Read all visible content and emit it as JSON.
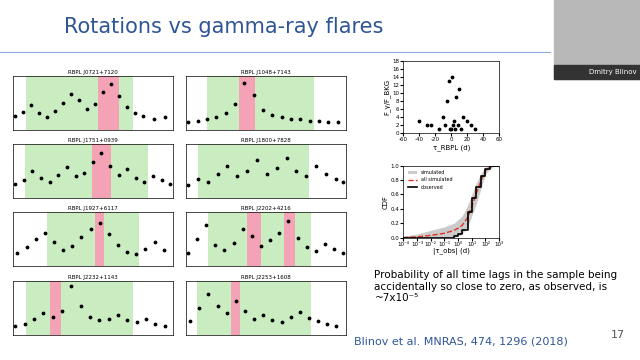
{
  "slide": {
    "title": "Rotations vs gamma-ray flares",
    "page": 17,
    "speaker": "Dmitry Blinov",
    "note": "Probability of all time lags in the sample being accidentally so close to zero, as observed, is ~7x10⁻⁵",
    "reference": "Blinov et al. MNRAS, 474, 1296 (2018)"
  },
  "chart_data": [
    {
      "type": "scatter",
      "title": "RBPL J0721+7120",
      "tick_labels": false,
      "xlim": [
        6550,
        7150
      ],
      "ylim": [
        0,
        4
      ],
      "observing_seasons": [
        [
          6600,
          7000
        ]
      ],
      "rotation_intervals": [
        [
          6870,
          6950
        ]
      ],
      "x": [
        6560,
        6590,
        6620,
        6650,
        6680,
        6710,
        6740,
        6770,
        6800,
        6830,
        6860,
        6890,
        6920,
        6950,
        6980,
        7010,
        7040,
        7080,
        7120
      ],
      "series": [
        {
          "color": "#000000",
          "marker": "o",
          "values": [
            1.0,
            1.3,
            1.8,
            1.2,
            0.9,
            1.4,
            2.0,
            2.6,
            2.2,
            1.5,
            1.9,
            2.8,
            3.4,
            2.5,
            1.7,
            1.2,
            1.0,
            0.8,
            0.9
          ]
        }
      ]
    },
    {
      "type": "scatter",
      "title": "RBPL J1048+7143",
      "tick_labels": false,
      "xlim": [
        6500,
        7100
      ],
      "ylim": [
        0,
        3
      ],
      "observing_seasons": [
        [
          6580,
          6980
        ]
      ],
      "rotation_intervals": [
        [
          6700,
          6760
        ]
      ],
      "x": [
        6510,
        6545,
        6580,
        6615,
        6650,
        6685,
        6720,
        6755,
        6790,
        6825,
        6860,
        6895,
        6930,
        6965,
        7000,
        7035,
        7070
      ],
      "series": [
        {
          "color": "#000000",
          "marker": "o",
          "values": [
            0.4,
            0.5,
            0.6,
            0.7,
            0.9,
            1.4,
            2.6,
            1.9,
            1.1,
            0.8,
            0.7,
            0.6,
            0.6,
            0.5,
            0.5,
            0.4,
            0.4
          ]
        }
      ]
    },
    {
      "type": "scatter",
      "title": "RBPL J1751+0939",
      "tick_labels": false,
      "xlim": [
        6400,
        7050
      ],
      "ylim": [
        0,
        3
      ],
      "observing_seasons": [
        [
          6450,
          6950
        ]
      ],
      "rotation_intervals": [
        [
          6720,
          6800
        ]
      ],
      "x": [
        6410,
        6445,
        6480,
        6515,
        6550,
        6585,
        6620,
        6655,
        6690,
        6725,
        6760,
        6795,
        6830,
        6865,
        6900,
        6935,
        6970,
        7005,
        7040
      ],
      "series": [
        {
          "color": "#000000",
          "marker": "o",
          "values": [
            0.8,
            1.0,
            1.5,
            1.1,
            0.9,
            1.3,
            1.7,
            1.2,
            1.4,
            2.0,
            2.5,
            1.8,
            1.3,
            1.6,
            1.1,
            0.9,
            1.2,
            1.0,
            0.8
          ]
        }
      ]
    },
    {
      "type": "scatter",
      "title": "RBPL J1800+7828",
      "tick_labels": false,
      "xlim": [
        6450,
        7100
      ],
      "ylim": [
        0,
        2
      ],
      "observing_seasons": [
        [
          6500,
          6950
        ]
      ],
      "rotation_intervals": [],
      "x": [
        6460,
        6500,
        6540,
        6580,
        6620,
        6660,
        6700,
        6740,
        6780,
        6820,
        6860,
        6900,
        6940,
        6980,
        7020,
        7060,
        7090
      ],
      "series": [
        {
          "color": "#000000",
          "marker": "o",
          "values": [
            0.5,
            0.7,
            0.6,
            0.9,
            1.2,
            0.8,
            1.0,
            1.4,
            0.9,
            1.1,
            1.5,
            1.0,
            0.8,
            1.2,
            0.9,
            0.7,
            0.6
          ]
        }
      ]
    },
    {
      "type": "scatter",
      "title": "RBPL J1927+6117",
      "tick_labels": false,
      "xlim": [
        6400,
        7100
      ],
      "ylim": [
        0,
        4
      ],
      "observing_seasons": [
        [
          6550,
          6950
        ]
      ],
      "rotation_intervals": [
        [
          6760,
          6800
        ]
      ],
      "x": [
        6420,
        6460,
        6500,
        6540,
        6580,
        6620,
        6660,
        6700,
        6740,
        6780,
        6820,
        6860,
        6900,
        6940,
        6980,
        7020,
        7060
      ],
      "series": [
        {
          "color": "#000000",
          "marker": "o",
          "values": [
            1.0,
            1.4,
            2.0,
            2.5,
            1.8,
            1.2,
            1.5,
            2.2,
            2.8,
            3.2,
            2.4,
            1.6,
            1.1,
            0.9,
            1.3,
            1.8,
            1.2
          ]
        }
      ]
    },
    {
      "type": "scatter",
      "title": "RBPL J2202+4216",
      "tick_labels": false,
      "xlim": [
        6450,
        7150
      ],
      "ylim": [
        0,
        5
      ],
      "observing_seasons": [
        [
          6550,
          7000
        ]
      ],
      "rotation_intervals": [
        [
          6720,
          6780
        ],
        [
          6880,
          6930
        ]
      ],
      "x": [
        6460,
        6500,
        6540,
        6580,
        6620,
        6660,
        6700,
        6740,
        6780,
        6820,
        6860,
        6900,
        6940,
        6980,
        7020,
        7060,
        7100,
        7140
      ],
      "series": [
        {
          "color": "#000000",
          "marker": "o",
          "values": [
            1.2,
            2.5,
            3.8,
            2.0,
            1.5,
            2.2,
            3.5,
            2.8,
            1.9,
            2.4,
            3.1,
            4.2,
            2.6,
            1.8,
            1.4,
            2.1,
            1.6,
            1.2
          ]
        }
      ]
    },
    {
      "type": "scatter",
      "title": "RBPL J2232+1143",
      "tick_labels": false,
      "xlim": [
        6500,
        7100
      ],
      "ylim": [
        0,
        3
      ],
      "observing_seasons": [
        [
          6550,
          6950
        ]
      ],
      "rotation_intervals": [
        [
          6640,
          6680
        ]
      ],
      "x": [
        6510,
        6545,
        6580,
        6615,
        6650,
        6685,
        6720,
        6755,
        6790,
        6825,
        6860,
        6895,
        6930,
        6965,
        7000,
        7035,
        7070
      ],
      "series": [
        {
          "color": "#000000",
          "marker": "o",
          "values": [
            0.5,
            0.6,
            0.9,
            1.2,
            1.0,
            1.3,
            2.7,
            1.6,
            1.0,
            0.8,
            0.9,
            1.1,
            0.8,
            0.7,
            0.9,
            0.6,
            0.5
          ]
        }
      ]
    },
    {
      "type": "scatter",
      "title": "RBPL J2253+1608",
      "tick_labels": false,
      "xlim": [
        6400,
        7100
      ],
      "ylim": [
        0,
        6
      ],
      "observing_seasons": [
        [
          6450,
          6950
        ]
      ],
      "rotation_intervals": [
        [
          6600,
          6640
        ]
      ],
      "x": [
        6420,
        6460,
        6500,
        6540,
        6580,
        6620,
        6660,
        6700,
        6740,
        6780,
        6820,
        6860,
        6900,
        6940,
        6980,
        7020,
        7060
      ],
      "series": [
        {
          "color": "#000000",
          "marker": "o",
          "values": [
            1.5,
            3.0,
            4.5,
            3.2,
            2.4,
            3.8,
            2.6,
            1.8,
            2.2,
            1.6,
            1.4,
            2.0,
            2.5,
            1.9,
            1.5,
            1.2,
            1.0
          ]
        }
      ]
    },
    {
      "type": "scatter",
      "x_label": "τ_RBPL (d)",
      "y_label": "F_γ/F_BKG",
      "xlim": [
        -60,
        60
      ],
      "ylim": [
        0,
        18
      ],
      "xticks": [
        -60,
        -40,
        -20,
        0,
        20,
        40,
        60
      ],
      "yticks": [
        0,
        2,
        4,
        6,
        8,
        10,
        12,
        14,
        16,
        18
      ],
      "x": [
        -40,
        -25,
        -15,
        -10,
        -8,
        -5,
        -3,
        -2,
        0,
        1,
        2,
        3,
        5,
        6,
        8,
        10,
        12,
        15,
        20,
        25,
        30,
        -30
      ],
      "series": [
        {
          "color": "#000000",
          "marker": "o",
          "values": [
            3,
            2,
            1,
            4,
            2,
            8,
            13,
            1,
            1,
            14,
            2,
            3,
            1,
            9,
            2,
            11,
            1,
            4,
            3,
            2,
            1,
            2
          ]
        }
      ]
    },
    {
      "type": "line",
      "log": "x",
      "x_label": "|τ_obs| (d)",
      "y_label": "CDF",
      "legend": "upper left",
      "xlim": [
        0.0001,
        1000
      ],
      "ylim": [
        0,
        1
      ],
      "xticks": [
        {
          "value": 0.0001,
          "label": "10⁻⁴"
        },
        {
          "value": 0.001,
          "label": "10⁻³"
        },
        {
          "value": 0.01,
          "label": "10⁻²"
        },
        {
          "value": 0.1,
          "label": "10⁻¹"
        },
        {
          "value": 1,
          "label": "10⁰"
        },
        {
          "value": 10,
          "label": "10¹"
        },
        {
          "value": 100,
          "label": "10²"
        },
        {
          "value": 1000,
          "label": "10³"
        }
      ],
      "yticks": [
        0.0,
        0.2,
        0.4,
        0.6,
        0.8,
        1.0
      ],
      "x": [
        0.0001,
        0.001,
        0.01,
        0.1,
        0.5,
        1,
        2,
        5,
        10,
        20,
        50,
        100,
        200,
        500,
        1000
      ],
      "series": [
        {
          "name": "simulated",
          "type": "area",
          "color": "#999999",
          "values_low": [
            0,
            0,
            0,
            0,
            0,
            0.02,
            0.05,
            0.15,
            0.3,
            0.45,
            0.7,
            0.88,
            0.95,
            1.0,
            1.0
          ],
          "values_high": [
            0.02,
            0.05,
            0.1,
            0.15,
            0.2,
            0.25,
            0.3,
            0.45,
            0.6,
            0.75,
            0.9,
            0.98,
            1.0,
            1.0,
            1.0
          ]
        },
        {
          "name": "all simulated",
          "type": "line",
          "line_style": "dashed",
          "color": "#e03020",
          "values": [
            0,
            0.01,
            0.03,
            0.06,
            0.1,
            0.13,
            0.17,
            0.28,
            0.43,
            0.6,
            0.8,
            0.93,
            0.98,
            1.0,
            1.0
          ]
        },
        {
          "name": "observed",
          "type": "step",
          "line_style": "solid",
          "color": "#000000",
          "values": [
            0,
            0,
            0,
            0,
            0.02,
            0.05,
            0.1,
            0.35,
            0.55,
            0.7,
            0.85,
            0.95,
            1.0,
            1.0,
            1.0
          ]
        }
      ]
    }
  ]
}
